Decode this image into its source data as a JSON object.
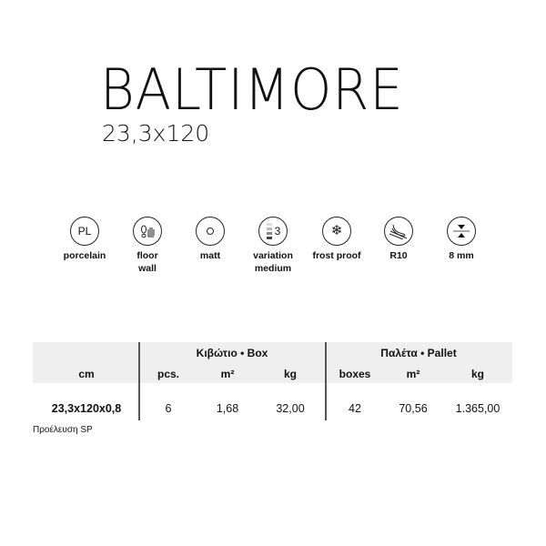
{
  "product": {
    "name": "BALTIMORE",
    "size": "23,3x120"
  },
  "features": [
    {
      "icon": "porcelain-icon",
      "icon_text": "PL",
      "label": "porcelain",
      "label2": ""
    },
    {
      "icon": "floor-wall-icon",
      "label": "floor",
      "label2": "wall"
    },
    {
      "icon": "matt-icon",
      "label": "matt",
      "label2": ""
    },
    {
      "icon": "variation-icon",
      "icon_text": "3",
      "label": "variation",
      "label2": "medium"
    },
    {
      "icon": "snowflake-icon",
      "label": "frost proof",
      "label2": ""
    },
    {
      "icon": "slip-resistance-icon",
      "label": "R10",
      "label2": ""
    },
    {
      "icon": "thickness-icon",
      "label": "8 mm",
      "label2": ""
    }
  ],
  "table": {
    "group_box": "Κιβώτιο • Box",
    "group_pallet": "Παλέτα • Pallet",
    "headers": [
      "cm",
      "pcs.",
      "m²",
      "kg",
      "boxes",
      "m²",
      "kg"
    ],
    "row": [
      "23,3x120x0,8",
      "6",
      "1,68",
      "32,00",
      "42",
      "70,56",
      "1.365,00"
    ]
  },
  "origin": "Προέλευση SP"
}
